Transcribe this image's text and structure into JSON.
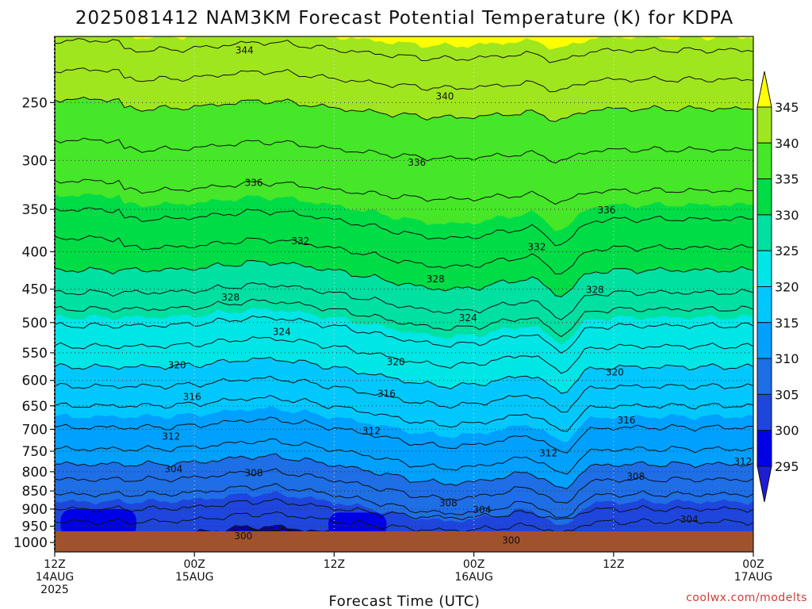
{
  "chart_data": {
    "type": "contour",
    "title": "2025081412 NAM3KM Forecast Potential Temperature (K) for KDPA",
    "xlabel": "Forecast Time (UTC)",
    "ylabel": "",
    "credit": "coolwx.com/modelts",
    "x_ticks": [
      {
        "hours": 0,
        "lines": [
          "12Z",
          "14AUG",
          "2025"
        ]
      },
      {
        "hours": 12,
        "lines": [
          "00Z",
          "15AUG"
        ]
      },
      {
        "hours": 24,
        "lines": [
          "12Z"
        ]
      },
      {
        "hours": 36,
        "lines": [
          "00Z",
          "16AUG"
        ]
      },
      {
        "hours": 48,
        "lines": [
          "12Z"
        ]
      },
      {
        "hours": 60,
        "lines": [
          "00Z",
          "17AUG"
        ]
      }
    ],
    "xlim_hours": [
      0,
      60
    ],
    "y_ticks_hpa": [
      "250",
      "300",
      "350",
      "400",
      "450",
      "500",
      "550",
      "600",
      "650",
      "700",
      "750",
      "800",
      "850",
      "900",
      "950",
      "1000"
    ],
    "ylim_hpa": [
      203,
      1030
    ],
    "y_scale": "log",
    "colorbar": {
      "levels": [
        "295",
        "300",
        "305",
        "310",
        "315",
        "320",
        "325",
        "330",
        "335",
        "340",
        "345"
      ],
      "colors": [
        "#1e1ed2",
        "#0000e6",
        "#1e46dc",
        "#1e6ee6",
        "#00a0ff",
        "#00c8ff",
        "#00e6e6",
        "#00e0a0",
        "#00dc46",
        "#46e628",
        "#a0e61e",
        "#ffff00"
      ]
    },
    "contour_labels": [
      {
        "text": "344",
        "hours": 16.3,
        "hpa": 212
      },
      {
        "text": "340",
        "hours": 33.5,
        "hpa": 245
      },
      {
        "text": "336",
        "hours": 31.1,
        "hpa": 302
      },
      {
        "text": "336",
        "hours": 17.1,
        "hpa": 322
      },
      {
        "text": "336",
        "hours": 47.4,
        "hpa": 351
      },
      {
        "text": "332",
        "hours": 21.1,
        "hpa": 387
      },
      {
        "text": "332",
        "hours": 41.4,
        "hpa": 394
      },
      {
        "text": "328",
        "hours": 32.7,
        "hpa": 436
      },
      {
        "text": "328",
        "hours": 46.4,
        "hpa": 451
      },
      {
        "text": "328",
        "hours": 15.1,
        "hpa": 462
      },
      {
        "text": "324",
        "hours": 35.5,
        "hpa": 493
      },
      {
        "text": "324",
        "hours": 19.5,
        "hpa": 515
      },
      {
        "text": "320",
        "hours": 29.3,
        "hpa": 566
      },
      {
        "text": "320",
        "hours": 10.5,
        "hpa": 572
      },
      {
        "text": "320",
        "hours": 48.1,
        "hpa": 585
      },
      {
        "text": "316",
        "hours": 11.8,
        "hpa": 632
      },
      {
        "text": "316",
        "hours": 28.5,
        "hpa": 626
      },
      {
        "text": "316",
        "hours": 49.1,
        "hpa": 680
      },
      {
        "text": "312",
        "hours": 27.2,
        "hpa": 704
      },
      {
        "text": "312",
        "hours": 10.0,
        "hpa": 716
      },
      {
        "text": "312",
        "hours": 42.4,
        "hpa": 755
      },
      {
        "text": "312",
        "hours": 59.1,
        "hpa": 775
      },
      {
        "text": "304",
        "hours": 10.2,
        "hpa": 793
      },
      {
        "text": "308",
        "hours": 17.1,
        "hpa": 803
      },
      {
        "text": "308",
        "hours": 49.9,
        "hpa": 812
      },
      {
        "text": "308",
        "hours": 33.8,
        "hpa": 883
      },
      {
        "text": "304",
        "hours": 36.7,
        "hpa": 902
      },
      {
        "text": "304",
        "hours": 54.5,
        "hpa": 930
      },
      {
        "text": "300",
        "hours": 16.2,
        "hpa": 980
      },
      {
        "text": "300",
        "hours": 39.2,
        "hpa": 993
      }
    ]
  }
}
